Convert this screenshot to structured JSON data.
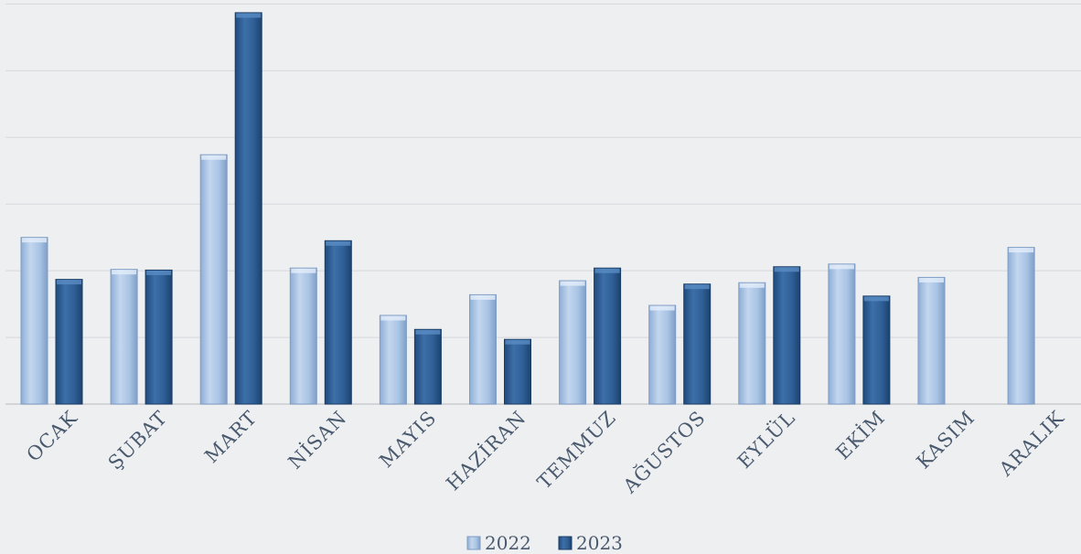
{
  "chart_data": {
    "type": "bar",
    "categories": [
      "OCAK",
      "ŞUBAT",
      "MART",
      "NİSAN",
      "MAYIS",
      "HAZİRAN",
      "TEMMUZ",
      "AĞUSTOS",
      "EYLÜL",
      "EKİM",
      "KASIM",
      "ARALIK"
    ],
    "series": [
      {
        "name": "2022",
        "color": "#a9c4e4",
        "values": [
          250,
          202,
          374,
          204,
          133,
          164,
          185,
          148,
          182,
          210,
          190,
          235
        ]
      },
      {
        "name": "2023",
        "color": "#2f5f96",
        "values": [
          187,
          201,
          587,
          245,
          112,
          97,
          204,
          180,
          206,
          162,
          null,
          null
        ]
      }
    ],
    "ylim": [
      0,
      600
    ],
    "ytick_step": 100,
    "grid": true,
    "legend_position": "bottom-center",
    "title": "",
    "xlabel": "",
    "ylabel": ""
  }
}
